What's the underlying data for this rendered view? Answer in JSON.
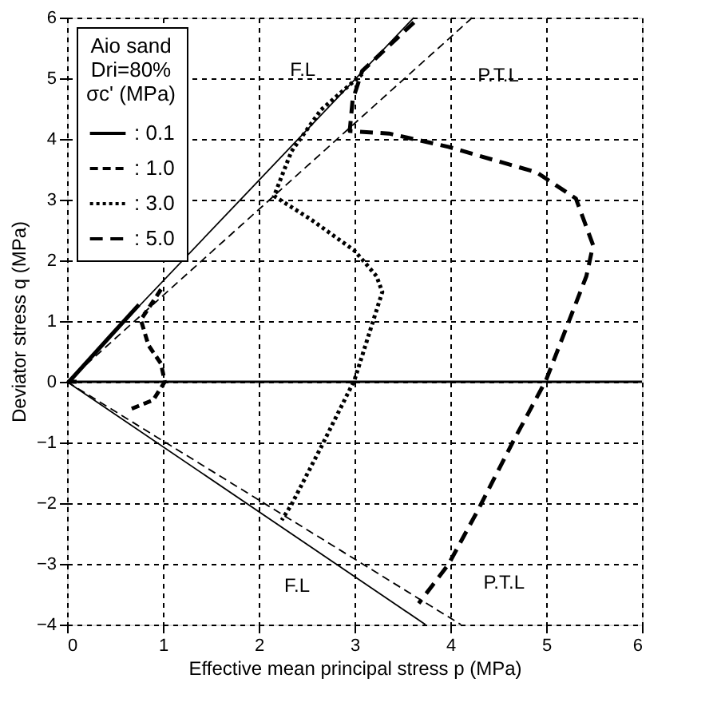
{
  "chart_data": {
    "type": "line",
    "xlabel": "Effective mean principal stress  p (MPa)",
    "ylabel": "Deviator stress  q (MPa)",
    "legend_title": "Aio sand\nDri=80%\nσc' (MPa)",
    "xlim": [
      0,
      6
    ],
    "ylim": [
      -4,
      6
    ],
    "xticks": [
      0,
      1,
      2,
      3,
      4,
      5,
      6
    ],
    "yticks": [
      -4,
      -3,
      -2,
      -1,
      0,
      1,
      2,
      3,
      4,
      5,
      6
    ],
    "grid": true,
    "legend": "top left",
    "marker": "none",
    "series": [
      {
        "name": ": 0.1",
        "color": "#000000",
        "line_style": "solid",
        "x": [
          0.1,
          0.02,
          0.45,
          0.75
        ],
        "values": [
          0,
          0.0,
          0.75,
          1.27
        ]
      },
      {
        "name": ": 1.0",
        "color": "#000000",
        "line_style": "dashed",
        "x": [
          0.98,
          0.77,
          0.85,
          0.98,
          1.02,
          0.9,
          0.65
        ],
        "values": [
          1.52,
          1.02,
          0.6,
          0.3,
          0,
          -0.3,
          -0.46
        ]
      },
      {
        "name": ": 3.0",
        "color": "#000000",
        "line_style": "dotted",
        "x": [
          3.08,
          2.65,
          2.34,
          2.16,
          2.54,
          3.0,
          3.23,
          3.29,
          3.0,
          2.65,
          2.34,
          2.24
        ],
        "values": [
          5.07,
          4.48,
          3.79,
          3.06,
          2.68,
          2.16,
          1.74,
          1.48,
          0.03,
          -1.08,
          -2.03,
          -2.28
        ]
      },
      {
        "name": ": 5.0",
        "color": "#000000",
        "line_style": "dashed",
        "x": [
          3.62,
          3.08,
          2.98,
          2.95,
          3.36,
          3.98,
          4.9,
          5.31,
          5.49,
          5.42,
          5.0,
          4.65,
          4.29,
          3.98,
          3.67
        ],
        "values": [
          5.92,
          5.12,
          4.64,
          4.13,
          4.09,
          3.87,
          3.45,
          3.02,
          2.25,
          1.74,
          0.03,
          -1.0,
          -2.11,
          -3.01,
          -3.65
        ]
      },
      {
        "color": "#000000",
        "line_style": "solid",
        "x": [
          0,
          3.62
        ],
        "values": [
          0,
          6
        ]
      },
      {
        "color": "#000000",
        "line_style": "dashed",
        "x": [
          0,
          4.23
        ],
        "values": [
          0,
          6
        ]
      },
      {
        "color": "#000000",
        "line_style": "solid",
        "x": [
          0,
          3.74
        ],
        "values": [
          0,
          -4
        ]
      },
      {
        "color": "#000000",
        "line_style": "dashed",
        "x": [
          0,
          4.11
        ],
        "values": [
          0,
          -4
        ]
      }
    ],
    "ref_lines": [
      {
        "axis": "y",
        "value": 0,
        "color": "#000000",
        "line_style": "solid"
      }
    ],
    "annotations": [
      "F.L",
      "P.T.L",
      "F.L",
      "P.T.L"
    ]
  }
}
